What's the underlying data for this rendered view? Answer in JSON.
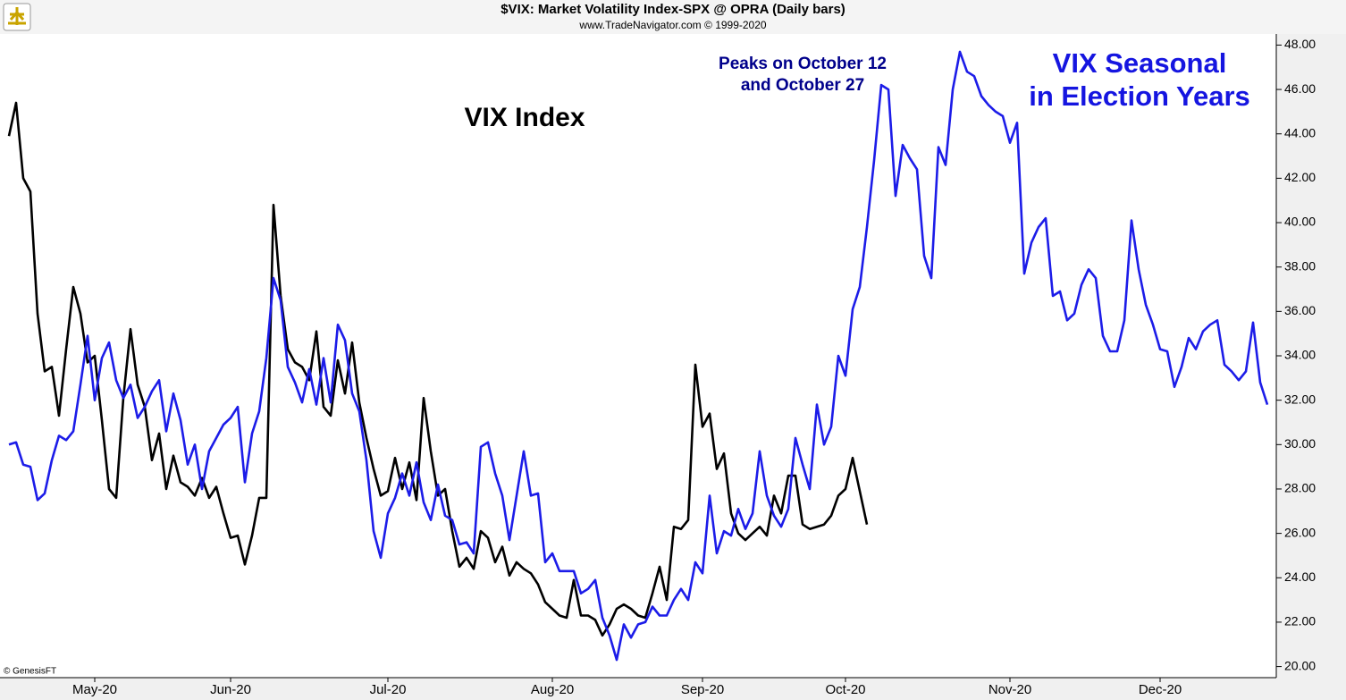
{
  "chart_data": {
    "type": "line",
    "title": "$VIX:  Market Volatility Index-SPX @ OPRA  (Daily bars)",
    "subtitle": "www.TradeNavigator.com © 1999-2020",
    "annotations": [
      "VIX Index",
      "Peaks on October 12",
      "and October 27",
      "VIX Seasonal",
      "in Election Years",
      "© GenesisFT"
    ],
    "categories": [
      null,
      null,
      null,
      null,
      null,
      null,
      null,
      null,
      null,
      null,
      null,
      null,
      "May-20",
      null,
      null,
      null,
      null,
      null,
      null,
      null,
      null,
      null,
      null,
      null,
      null,
      null,
      null,
      null,
      null,
      null,
      null,
      "Jun-20",
      null,
      null,
      null,
      null,
      null,
      null,
      null,
      null,
      null,
      null,
      null,
      null,
      null,
      null,
      null,
      null,
      null,
      null,
      null,
      null,
      null,
      "Jul-20",
      null,
      null,
      null,
      null,
      null,
      null,
      null,
      null,
      null,
      null,
      null,
      null,
      null,
      null,
      null,
      null,
      null,
      null,
      null,
      null,
      null,
      null,
      "Aug-20",
      null,
      null,
      null,
      null,
      null,
      null,
      null,
      null,
      null,
      null,
      null,
      null,
      null,
      null,
      null,
      null,
      null,
      null,
      null,
      null,
      "Sep-20",
      null,
      null,
      null,
      null,
      null,
      null,
      null,
      null,
      null,
      null,
      null,
      null,
      null,
      null,
      null,
      null,
      null,
      null,
      null,
      "Oct-20",
      null,
      null,
      null,
      null,
      null,
      null,
      null,
      null,
      null,
      null,
      null,
      null,
      null,
      null,
      null,
      null,
      null,
      null,
      null,
      null,
      null,
      null,
      "Nov-20",
      null,
      null,
      null,
      null,
      null,
      null,
      null,
      null,
      null,
      null,
      null,
      null,
      null,
      null,
      null,
      null,
      null,
      null,
      null,
      null,
      "Dec-20",
      null,
      null,
      null,
      null,
      null,
      null,
      null,
      null,
      null,
      null,
      null,
      null,
      null,
      null,
      null
    ],
    "series": [
      {
        "color": "#000000",
        "values": [
          43.9,
          45.4,
          42.0,
          41.4,
          35.9,
          33.3,
          33.5,
          31.3,
          34.3,
          37.1,
          35.9,
          33.7,
          34.0,
          31.1,
          28.0,
          27.6,
          32.1,
          35.2,
          32.7,
          31.7,
          29.3,
          30.5,
          28.0,
          29.5,
          28.3,
          28.1,
          27.7,
          28.5,
          27.6,
          28.1,
          26.9,
          25.8,
          25.9,
          24.6,
          25.9,
          27.6,
          27.6,
          40.8,
          36.7,
          34.3,
          33.7,
          33.5,
          32.9,
          35.1,
          31.7,
          31.3,
          33.8,
          32.3,
          34.6,
          31.9,
          30.3,
          28.9,
          27.7,
          27.9,
          29.4,
          28.0,
          29.2,
          27.5,
          32.1,
          29.7,
          27.7,
          28.0,
          26.1,
          24.5,
          24.9,
          24.4,
          26.1,
          25.8,
          24.7,
          25.4,
          24.1,
          24.7,
          24.4,
          24.2,
          23.7,
          22.9,
          22.6,
          22.3,
          22.2,
          23.9,
          22.3,
          22.3,
          22.1,
          21.4,
          21.9,
          22.6,
          22.8,
          22.6,
          22.3,
          22.2,
          23.3,
          24.5,
          23.0,
          26.3,
          26.2,
          26.6,
          33.6,
          30.8,
          31.4,
          28.9,
          29.6,
          26.9,
          26.0,
          25.7,
          26.0,
          26.3,
          25.9,
          27.7,
          26.9,
          28.6,
          28.6,
          26.4,
          26.2,
          26.3,
          26.4,
          26.8,
          27.7,
          28.0,
          29.4,
          27.9,
          26.4,
          null,
          null,
          null,
          null,
          null,
          null,
          null,
          null,
          null,
          null,
          null,
          null,
          null,
          null,
          null,
          null,
          null,
          null,
          null,
          null,
          null,
          null,
          null,
          null,
          null,
          null,
          null,
          null,
          null,
          null,
          null,
          null,
          null,
          null,
          null,
          null,
          null,
          null,
          null,
          null,
          null,
          null,
          null,
          null,
          null,
          null,
          null,
          null,
          null,
          null,
          null,
          null,
          null,
          null,
          null,
          null
        ]
      },
      {
        "color": "#1c1ce8",
        "values": [
          30.0,
          30.1,
          29.1,
          29.0,
          27.5,
          27.8,
          29.3,
          30.4,
          30.2,
          30.6,
          32.7,
          34.9,
          32.0,
          33.9,
          34.6,
          32.9,
          32.1,
          32.7,
          31.2,
          31.7,
          32.4,
          32.9,
          30.6,
          32.3,
          31.1,
          29.1,
          30.0,
          28.0,
          29.7,
          30.3,
          30.9,
          31.2,
          31.7,
          28.3,
          30.5,
          31.5,
          33.9,
          37.5,
          36.5,
          33.5,
          32.8,
          31.9,
          33.4,
          31.8,
          33.9,
          31.9,
          35.4,
          34.7,
          32.3,
          31.5,
          29.3,
          26.1,
          24.9,
          26.9,
          27.6,
          28.7,
          27.7,
          29.2,
          27.4,
          26.6,
          28.2,
          26.8,
          26.6,
          25.5,
          25.6,
          25.1,
          29.9,
          30.1,
          28.7,
          27.7,
          25.7,
          27.7,
          29.7,
          27.7,
          27.8,
          24.7,
          25.1,
          24.3,
          24.3,
          24.3,
          23.3,
          23.5,
          23.9,
          22.2,
          21.4,
          20.3,
          21.9,
          21.3,
          21.9,
          22.0,
          22.7,
          22.3,
          22.3,
          23.0,
          23.5,
          23.0,
          24.7,
          24.2,
          27.7,
          25.1,
          26.1,
          25.9,
          27.1,
          26.2,
          26.9,
          29.7,
          27.7,
          26.8,
          26.3,
          27.1,
          30.3,
          29.1,
          28.0,
          31.8,
          30.0,
          30.8,
          34.0,
          33.1,
          36.1,
          37.1,
          39.8,
          42.8,
          46.2,
          46.0,
          41.2,
          43.5,
          42.9,
          42.4,
          38.5,
          37.5,
          43.4,
          42.6,
          46.0,
          47.7,
          46.8,
          46.6,
          45.7,
          45.3,
          45.0,
          44.8,
          43.6,
          44.5,
          37.7,
          39.1,
          39.8,
          40.2,
          36.7,
          36.9,
          35.6,
          35.9,
          37.2,
          37.9,
          37.5,
          34.9,
          34.2,
          34.2,
          35.6,
          40.1,
          37.9,
          36.3,
          35.4,
          34.3,
          34.2,
          32.6,
          33.5,
          34.8,
          34.3,
          35.1,
          35.4,
          35.6,
          33.6,
          33.3,
          32.9,
          33.3,
          35.5,
          32.8,
          31.8
        ]
      }
    ],
    "ylim": [
      19.5,
      48.5
    ],
    "yticks": [
      {
        "value": 20,
        "label": "20.00"
      },
      {
        "value": 22,
        "label": "22.00"
      },
      {
        "value": 24,
        "label": "24.00"
      },
      {
        "value": 26,
        "label": "26.00"
      },
      {
        "value": 28,
        "label": "28.00"
      },
      {
        "value": 30,
        "label": "30.00"
      },
      {
        "value": 32,
        "label": "32.00"
      },
      {
        "value": 34,
        "label": "34.00"
      },
      {
        "value": 36,
        "label": "36.00"
      },
      {
        "value": 38,
        "label": "38.00"
      },
      {
        "value": 40,
        "label": "40.00"
      },
      {
        "value": 42,
        "label": "42.00"
      },
      {
        "value": 44,
        "label": "44.00"
      },
      {
        "value": 46,
        "label": "46.00"
      },
      {
        "value": 48,
        "label": "48.00"
      }
    ],
    "grid": false
  }
}
